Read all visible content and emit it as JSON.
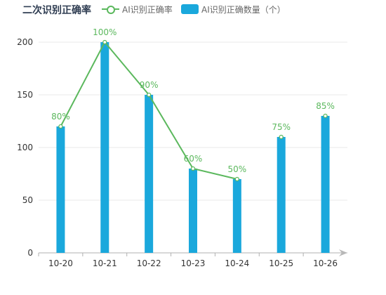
{
  "chart_data": {
    "type": "bar",
    "title": "二次识别正确率",
    "categories": [
      "10-20",
      "10-21",
      "10-22",
      "10-23",
      "10-24",
      "10-25",
      "10-26"
    ],
    "ylim": [
      0,
      220
    ],
    "yticks": [
      0,
      50,
      100,
      150,
      200
    ],
    "grid": true,
    "legend_position": "top",
    "series": [
      {
        "name": "AI识别正确数量（个）",
        "type": "bar",
        "color": "#1aa8dc",
        "values": [
          120,
          200,
          150,
          80,
          70,
          110,
          130
        ]
      },
      {
        "name": "AI识别正确率",
        "type": "line",
        "color": "#5bb85d",
        "values": [
          80,
          100,
          90,
          60,
          50,
          75,
          85
        ],
        "labels": [
          "80%",
          "100%",
          "90%",
          "60%",
          "50%",
          "75%",
          "85%"
        ],
        "plotted_on_bar_axis": [
          120,
          200,
          150,
          80,
          70,
          110,
          130
        ],
        "connected_segments": [
          [
            0,
            4
          ]
        ],
        "isolated_points": [
          5,
          6
        ]
      }
    ]
  }
}
